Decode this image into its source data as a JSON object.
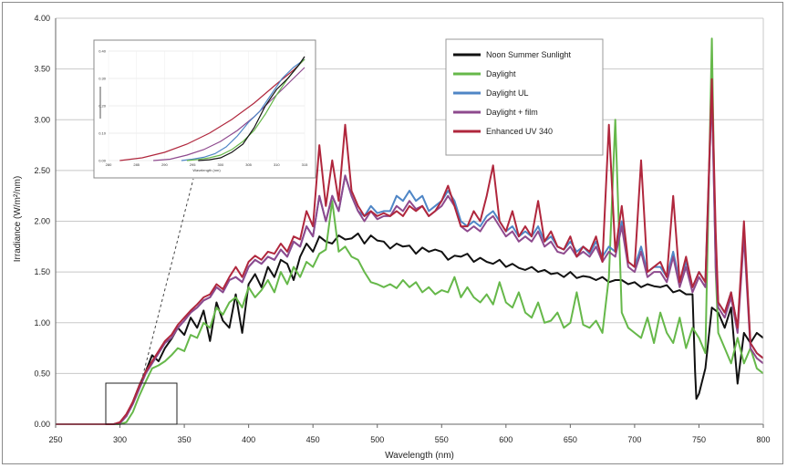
{
  "chart_data": {
    "type": "line",
    "title": "",
    "xlabel": "Wavelength (nm)",
    "ylabel": "Irradiance (W/m²/nm)",
    "xlim": [
      250,
      800
    ],
    "ylim": [
      0,
      4.0
    ],
    "x_ticks": [
      "250",
      "300",
      "350",
      "400",
      "450",
      "500",
      "550",
      "600",
      "650",
      "700",
      "750",
      "800"
    ],
    "y_ticks": [
      "0.00",
      "0.50",
      "1.00",
      "1.50",
      "2.00",
      "2.50",
      "3.00",
      "3.50",
      "4.00"
    ],
    "grid": "horizontal",
    "legend_position": "top-right",
    "colors": {
      "Noon Summer Sunlight": "#111111",
      "Daylight": "#66b84a",
      "Daylight UL": "#4f86c6",
      "Daylight + film": "#8e4a8e",
      "Enhanced UV 340": "#b0273d"
    },
    "series": [
      {
        "name": "Noon Summer Sunlight",
        "x": [
          250,
          290,
          295,
          300,
          305,
          310,
          315,
          320,
          325,
          330,
          335,
          340,
          345,
          350,
          355,
          360,
          365,
          370,
          375,
          380,
          385,
          390,
          395,
          400,
          405,
          410,
          415,
          420,
          425,
          430,
          435,
          440,
          445,
          450,
          455,
          460,
          465,
          470,
          475,
          480,
          485,
          490,
          495,
          500,
          505,
          510,
          515,
          520,
          525,
          530,
          535,
          540,
          545,
          550,
          555,
          560,
          565,
          570,
          575,
          580,
          585,
          590,
          595,
          600,
          605,
          610,
          615,
          620,
          625,
          630,
          635,
          640,
          645,
          650,
          655,
          660,
          665,
          670,
          675,
          680,
          685,
          690,
          695,
          700,
          705,
          710,
          715,
          720,
          725,
          730,
          735,
          740,
          745,
          747,
          748,
          750,
          755,
          760,
          765,
          770,
          775,
          780,
          785,
          790,
          795,
          800
        ],
        "y": [
          0,
          0,
          0,
          0.01,
          0.08,
          0.22,
          0.38,
          0.52,
          0.68,
          0.62,
          0.75,
          0.84,
          0.95,
          0.88,
          1.05,
          0.95,
          1.12,
          0.82,
          1.2,
          1.02,
          0.95,
          1.28,
          0.9,
          1.38,
          1.48,
          1.35,
          1.55,
          1.45,
          1.62,
          1.58,
          1.42,
          1.65,
          1.78,
          1.7,
          1.85,
          1.8,
          1.78,
          1.86,
          1.82,
          1.83,
          1.88,
          1.78,
          1.86,
          1.81,
          1.8,
          1.73,
          1.78,
          1.75,
          1.76,
          1.68,
          1.74,
          1.7,
          1.72,
          1.7,
          1.62,
          1.66,
          1.65,
          1.68,
          1.6,
          1.64,
          1.6,
          1.58,
          1.62,
          1.55,
          1.58,
          1.54,
          1.52,
          1.55,
          1.5,
          1.52,
          1.48,
          1.49,
          1.45,
          1.5,
          1.44,
          1.46,
          1.45,
          1.42,
          1.45,
          1.4,
          1.42,
          1.42,
          1.38,
          1.4,
          1.35,
          1.38,
          1.36,
          1.35,
          1.37,
          1.3,
          1.32,
          1.28,
          1.28,
          0.52,
          0.25,
          0.3,
          0.55,
          1.15,
          1.1,
          0.95,
          1.15,
          0.4,
          0.9,
          0.8,
          0.9,
          0.85
        ]
      },
      {
        "name": "Daylight",
        "x": [
          250,
          300,
          305,
          310,
          315,
          320,
          325,
          330,
          335,
          340,
          345,
          350,
          355,
          360,
          365,
          370,
          375,
          380,
          385,
          390,
          395,
          400,
          405,
          410,
          415,
          420,
          425,
          430,
          435,
          440,
          445,
          450,
          455,
          460,
          465,
          470,
          475,
          480,
          485,
          490,
          495,
          500,
          505,
          510,
          515,
          520,
          525,
          530,
          535,
          540,
          545,
          550,
          555,
          560,
          565,
          570,
          575,
          580,
          585,
          590,
          595,
          600,
          605,
          610,
          615,
          620,
          625,
          630,
          635,
          640,
          645,
          650,
          655,
          660,
          665,
          670,
          675,
          680,
          685,
          690,
          695,
          700,
          705,
          710,
          715,
          720,
          725,
          730,
          735,
          740,
          745,
          750,
          755,
          760,
          763,
          765,
          770,
          775,
          780,
          785,
          790,
          795,
          800
        ],
        "y": [
          0,
          0,
          0.02,
          0.12,
          0.28,
          0.42,
          0.55,
          0.58,
          0.62,
          0.68,
          0.75,
          0.72,
          0.88,
          0.85,
          1.0,
          0.95,
          1.15,
          1.08,
          1.2,
          1.25,
          1.15,
          1.35,
          1.25,
          1.32,
          1.42,
          1.3,
          1.5,
          1.38,
          1.55,
          1.45,
          1.6,
          1.55,
          1.68,
          1.72,
          2.2,
          1.7,
          1.75,
          1.65,
          1.62,
          1.5,
          1.4,
          1.38,
          1.35,
          1.38,
          1.34,
          1.42,
          1.35,
          1.4,
          1.3,
          1.35,
          1.28,
          1.32,
          1.3,
          1.45,
          1.25,
          1.35,
          1.25,
          1.2,
          1.28,
          1.18,
          1.4,
          1.2,
          1.15,
          1.3,
          1.1,
          1.05,
          1.2,
          1.0,
          1.02,
          1.1,
          0.95,
          1.0,
          1.3,
          0.98,
          0.95,
          1.02,
          0.9,
          1.45,
          3.0,
          1.1,
          0.95,
          0.9,
          0.85,
          1.05,
          0.8,
          1.1,
          0.9,
          0.8,
          1.05,
          0.75,
          0.95,
          0.85,
          0.7,
          3.8,
          1.5,
          0.9,
          0.75,
          0.6,
          0.85,
          0.6,
          0.75,
          0.55,
          0.5
        ]
      },
      {
        "name": "Daylight UL",
        "x": [
          250,
          295,
          300,
          305,
          310,
          315,
          320,
          325,
          330,
          335,
          340,
          345,
          350,
          355,
          360,
          365,
          370,
          375,
          380,
          385,
          390,
          395,
          400,
          405,
          410,
          415,
          420,
          425,
          430,
          435,
          440,
          445,
          450,
          455,
          460,
          465,
          470,
          475,
          480,
          485,
          490,
          495,
          500,
          505,
          510,
          515,
          520,
          525,
          530,
          535,
          540,
          545,
          550,
          555,
          560,
          565,
          570,
          575,
          580,
          585,
          590,
          595,
          600,
          605,
          610,
          615,
          620,
          625,
          630,
          635,
          640,
          645,
          650,
          655,
          660,
          665,
          670,
          675,
          680,
          685,
          690,
          695,
          700,
          705,
          710,
          715,
          720,
          725,
          730,
          735,
          740,
          745,
          750,
          755,
          760,
          763,
          765,
          770,
          775,
          780,
          785,
          790,
          795,
          800
        ],
        "y": [
          0,
          0,
          0.01,
          0.08,
          0.2,
          0.35,
          0.5,
          0.6,
          0.7,
          0.8,
          0.85,
          0.95,
          1.02,
          1.1,
          1.15,
          1.22,
          1.25,
          1.35,
          1.3,
          1.42,
          1.45,
          1.4,
          1.55,
          1.62,
          1.58,
          1.65,
          1.62,
          1.72,
          1.65,
          1.8,
          1.75,
          1.95,
          1.85,
          2.25,
          2.0,
          2.25,
          2.1,
          2.45,
          2.25,
          2.1,
          2.05,
          2.15,
          2.08,
          2.1,
          2.1,
          2.25,
          2.2,
          2.3,
          2.2,
          2.25,
          2.1,
          2.15,
          2.2,
          2.3,
          2.2,
          2.0,
          1.95,
          2.0,
          1.95,
          2.05,
          2.1,
          2.0,
          1.9,
          1.95,
          1.85,
          1.9,
          1.85,
          1.95,
          1.8,
          1.85,
          1.75,
          1.72,
          1.8,
          1.7,
          1.75,
          1.68,
          1.8,
          1.65,
          1.75,
          1.7,
          2.0,
          1.6,
          1.55,
          1.75,
          1.5,
          1.55,
          1.55,
          1.45,
          1.7,
          1.4,
          1.6,
          1.35,
          1.5,
          1.4,
          3.3,
          1.6,
          1.2,
          1.1,
          1.3,
          0.95,
          1.9,
          0.8,
          0.7,
          0.65
        ]
      },
      {
        "name": "Daylight + film",
        "x": [
          250,
          295,
          300,
          305,
          310,
          315,
          320,
          325,
          330,
          335,
          340,
          345,
          350,
          355,
          360,
          365,
          370,
          375,
          380,
          385,
          390,
          395,
          400,
          405,
          410,
          415,
          420,
          425,
          430,
          435,
          440,
          445,
          450,
          455,
          460,
          465,
          470,
          475,
          480,
          485,
          490,
          495,
          500,
          505,
          510,
          515,
          520,
          525,
          530,
          535,
          540,
          545,
          550,
          555,
          560,
          565,
          570,
          575,
          580,
          585,
          590,
          595,
          600,
          605,
          610,
          615,
          620,
          625,
          630,
          635,
          640,
          645,
          650,
          655,
          660,
          665,
          670,
          675,
          680,
          685,
          690,
          695,
          700,
          705,
          710,
          715,
          720,
          725,
          730,
          735,
          740,
          745,
          750,
          755,
          760,
          763,
          765,
          770,
          775,
          780,
          785,
          790,
          795,
          800
        ],
        "y": [
          0,
          0,
          0.01,
          0.08,
          0.2,
          0.35,
          0.5,
          0.6,
          0.7,
          0.8,
          0.85,
          0.95,
          1.02,
          1.1,
          1.15,
          1.22,
          1.25,
          1.35,
          1.3,
          1.42,
          1.45,
          1.4,
          1.55,
          1.62,
          1.58,
          1.65,
          1.62,
          1.72,
          1.65,
          1.8,
          1.75,
          1.95,
          1.85,
          2.25,
          2.0,
          2.25,
          2.1,
          2.45,
          2.25,
          2.1,
          2.0,
          2.1,
          2.02,
          2.05,
          2.05,
          2.15,
          2.1,
          2.2,
          2.12,
          2.15,
          2.05,
          2.1,
          2.15,
          2.25,
          2.15,
          1.95,
          1.9,
          1.95,
          1.9,
          2.0,
          2.05,
          1.95,
          1.85,
          1.9,
          1.8,
          1.85,
          1.8,
          1.9,
          1.75,
          1.8,
          1.7,
          1.68,
          1.75,
          1.65,
          1.7,
          1.65,
          1.75,
          1.6,
          1.7,
          1.65,
          1.95,
          1.55,
          1.5,
          1.7,
          1.45,
          1.5,
          1.5,
          1.4,
          1.65,
          1.35,
          1.55,
          1.3,
          1.45,
          1.35,
          3.3,
          1.55,
          1.15,
          1.05,
          1.25,
          0.9,
          1.85,
          0.75,
          0.65,
          0.6
        ]
      },
      {
        "name": "Enhanced UV 340",
        "x": [
          250,
          295,
          300,
          305,
          310,
          315,
          320,
          325,
          330,
          335,
          340,
          345,
          350,
          355,
          360,
          365,
          370,
          375,
          380,
          385,
          390,
          395,
          400,
          405,
          410,
          415,
          420,
          425,
          430,
          435,
          440,
          445,
          450,
          455,
          460,
          465,
          470,
          475,
          480,
          485,
          490,
          495,
          500,
          505,
          510,
          515,
          520,
          525,
          530,
          535,
          540,
          545,
          550,
          555,
          560,
          565,
          570,
          575,
          580,
          585,
          590,
          595,
          600,
          605,
          610,
          615,
          620,
          625,
          630,
          635,
          640,
          645,
          650,
          655,
          660,
          665,
          670,
          675,
          680,
          685,
          690,
          695,
          700,
          705,
          710,
          715,
          720,
          725,
          730,
          735,
          740,
          745,
          750,
          755,
          760,
          763,
          765,
          770,
          775,
          780,
          785,
          790,
          795,
          800
        ],
        "y": [
          0,
          0,
          0.02,
          0.1,
          0.22,
          0.38,
          0.52,
          0.62,
          0.72,
          0.82,
          0.88,
          0.98,
          1.05,
          1.12,
          1.18,
          1.25,
          1.28,
          1.38,
          1.33,
          1.45,
          1.55,
          1.45,
          1.6,
          1.66,
          1.62,
          1.7,
          1.68,
          1.78,
          1.7,
          1.85,
          1.82,
          2.1,
          1.95,
          2.75,
          2.15,
          2.6,
          2.2,
          2.95,
          2.3,
          2.15,
          2.05,
          2.1,
          2.05,
          2.08,
          2.05,
          2.1,
          2.05,
          2.15,
          2.1,
          2.15,
          2.05,
          2.1,
          2.2,
          2.35,
          2.15,
          1.95,
          1.95,
          2.1,
          2.0,
          2.25,
          2.55,
          2.0,
          1.9,
          2.1,
          1.85,
          1.95,
          1.85,
          2.2,
          1.8,
          1.9,
          1.75,
          1.72,
          1.85,
          1.65,
          1.75,
          1.7,
          1.85,
          1.6,
          2.95,
          1.7,
          2.15,
          1.6,
          1.55,
          2.6,
          1.5,
          1.55,
          1.6,
          1.45,
          2.25,
          1.4,
          1.65,
          1.35,
          1.5,
          1.4,
          3.4,
          1.9,
          1.2,
          1.1,
          1.3,
          0.95,
          2.0,
          0.8,
          0.7,
          0.65
        ]
      }
    ]
  },
  "inset": {
    "x_ticks": [
      "280",
      "285",
      "290",
      "295",
      "300",
      "305",
      "310",
      "315"
    ],
    "y_ticks": [
      "0.40",
      "0.30",
      "0.20",
      "0.10",
      "0.00"
    ],
    "xlabel": "Wavelength (nm)"
  }
}
